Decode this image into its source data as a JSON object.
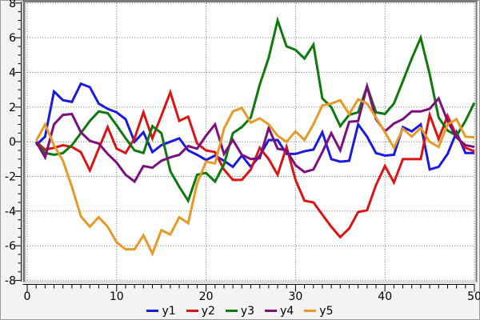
{
  "chart_data": {
    "type": "line",
    "title": "",
    "xlabel": "",
    "ylabel": "",
    "xlim": [
      0,
      50
    ],
    "ylim": [
      -8,
      8
    ],
    "x_ticks": [
      0,
      10,
      20,
      30,
      40,
      50
    ],
    "x_tick_labels": [
      "0",
      "10",
      "20",
      "30",
      "40",
      "50"
    ],
    "y_ticks": [
      8,
      6,
      4,
      2,
      0,
      -2,
      -4,
      -6,
      -8
    ],
    "y_tick_labels": [
      "8",
      "6",
      "4",
      "2",
      "0",
      "-2",
      "-4",
      "-6",
      "-8"
    ],
    "x_minor_step": 1,
    "y_minor_step": 0.5,
    "grid": "dotted",
    "legend_position": "bottom",
    "x": [
      1,
      2,
      3,
      4,
      5,
      6,
      7,
      8,
      9,
      10,
      11,
      12,
      13,
      14,
      15,
      16,
      17,
      18,
      19,
      20,
      21,
      22,
      23,
      24,
      25,
      26,
      27,
      28,
      29,
      30,
      31,
      32,
      33,
      34,
      35,
      36,
      37,
      38,
      39,
      40,
      41,
      42,
      43,
      44,
      45,
      46,
      47,
      48,
      49,
      50
    ],
    "series": [
      {
        "name": "y1",
        "color": "#1a1ae0",
        "values": [
          -0.2,
          0.3,
          2.9,
          2.4,
          2.3,
          3.35,
          3.15,
          2.2,
          1.9,
          1.7,
          1.3,
          0.0,
          0.55,
          -0.6,
          -0.2,
          0.0,
          0.2,
          -0.5,
          -0.75,
          -1.05,
          -0.8,
          -1.1,
          -1.45,
          -0.8,
          -1.45,
          -0.8,
          0.1,
          0.1,
          -0.7,
          -0.7,
          -0.55,
          -0.45,
          0.55,
          -1.0,
          -1.15,
          -1.1,
          1.0,
          0.3,
          -0.65,
          -0.8,
          -0.75,
          0.85,
          0.6,
          1.0,
          -1.6,
          -1.45,
          -0.7,
          0.55,
          -0.65,
          -0.65
        ]
      },
      {
        "name": "y2",
        "color": "#dc1414",
        "values": [
          0.0,
          -0.45,
          -0.35,
          -0.2,
          -0.3,
          -0.6,
          -1.65,
          -0.4,
          0.85,
          -0.4,
          -0.65,
          0.2,
          1.7,
          0.2,
          1.5,
          2.85,
          1.2,
          1.45,
          -0.1,
          -0.5,
          -0.6,
          -1.6,
          -2.2,
          -2.2,
          -1.6,
          -0.35,
          -1.0,
          -1.9,
          -0.3,
          -2.2,
          -3.4,
          -3.5,
          -4.2,
          -4.9,
          -5.5,
          -5.0,
          -4.05,
          -3.95,
          -2.5,
          -1.4,
          -2.35,
          -1.0,
          -1.0,
          -1.0,
          1.55,
          0.15,
          1.5,
          0.35,
          -0.35,
          -0.55
        ]
      },
      {
        "name": "y3",
        "color": "#0e7a0e",
        "values": [
          0.0,
          -0.65,
          -0.75,
          -0.65,
          -0.2,
          0.5,
          1.2,
          1.75,
          1.65,
          0.95,
          0.2,
          -0.5,
          -0.65,
          0.9,
          0.5,
          -1.7,
          -2.6,
          -3.4,
          -1.9,
          -1.8,
          -2.3,
          -1.3,
          0.5,
          0.85,
          1.4,
          3.3,
          4.85,
          7.0,
          5.5,
          5.3,
          4.8,
          5.6,
          2.5,
          2.0,
          0.9,
          1.55,
          1.7,
          3.2,
          1.7,
          1.6,
          2.2,
          3.5,
          4.8,
          6.0,
          3.9,
          1.4,
          0.65,
          0.35,
          1.2,
          2.25
        ]
      },
      {
        "name": "y4",
        "color": "#7d107d",
        "values": [
          0.0,
          -0.9,
          1.0,
          1.55,
          1.6,
          0.55,
          0.05,
          -0.1,
          -0.7,
          -1.2,
          -1.9,
          -2.3,
          -1.4,
          -1.5,
          -1.1,
          -0.9,
          -0.75,
          -0.25,
          -0.4,
          0.35,
          1.0,
          -0.7,
          0.1,
          -0.75,
          -1.0,
          -0.95,
          0.8,
          -0.4,
          -0.5,
          -1.35,
          -1.75,
          -1.6,
          -0.6,
          0.5,
          -0.5,
          1.15,
          1.2,
          3.2,
          1.3,
          0.6,
          1.05,
          1.3,
          1.75,
          1.75,
          1.9,
          2.5,
          1.2,
          0.25,
          -0.2,
          -0.3
        ]
      },
      {
        "name": "y5",
        "color": "#e89a28",
        "values": [
          0.05,
          1.0,
          -0.2,
          -1.1,
          -2.6,
          -4.3,
          -4.9,
          -4.35,
          -4.9,
          -5.8,
          -6.2,
          -6.2,
          -5.4,
          -6.45,
          -5.1,
          -5.35,
          -4.35,
          -4.7,
          -2.4,
          -1.15,
          -1.25,
          0.75,
          1.75,
          1.95,
          1.1,
          1.35,
          1.0,
          0.35,
          0.0,
          0.6,
          0.1,
          1.0,
          2.1,
          2.2,
          2.4,
          1.6,
          2.45,
          2.2,
          1.4,
          0.55,
          -0.35,
          0.75,
          0.3,
          0.8,
          0.0,
          -0.3,
          1.0,
          1.3,
          0.3,
          0.25
        ]
      }
    ]
  },
  "legend": {
    "items": [
      {
        "label": "y1",
        "color": "#1a1ae0"
      },
      {
        "label": "y2",
        "color": "#dc1414"
      },
      {
        "label": "y3",
        "color": "#0e7a0e"
      },
      {
        "label": "y4",
        "color": "#7d107d"
      },
      {
        "label": "y5",
        "color": "#e89a28"
      }
    ]
  },
  "colors": {
    "plot_background": "#ffffff",
    "page_background": "#f3f3f3",
    "frame_dark": "#7a7a7a",
    "frame_light": "#bdbdbd",
    "grid": "#6b6b6b",
    "axis": "#000000",
    "text": "#000000"
  }
}
